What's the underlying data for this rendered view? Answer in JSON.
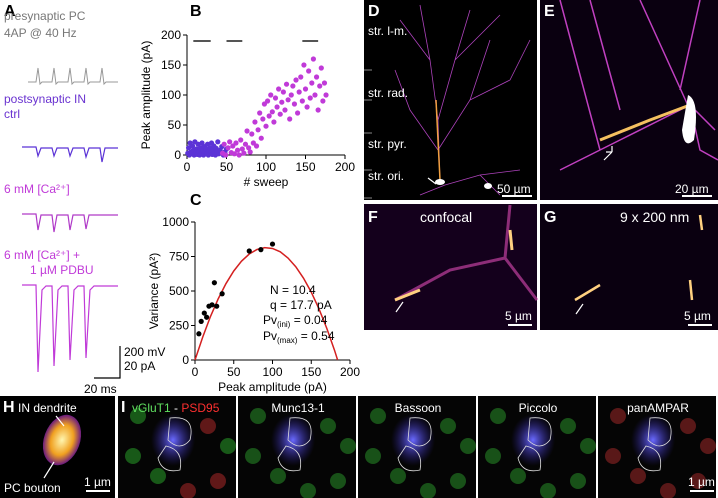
{
  "chart_data": [
    {
      "type": "scatter",
      "xlabel": "# sweep",
      "ylabel": "Peak amplitude (pA)",
      "xlim": [
        0,
        200
      ],
      "ylim": [
        0,
        200
      ],
      "xticks": [
        0,
        50,
        100,
        150,
        200
      ],
      "yticks": [
        0,
        50,
        100,
        150,
        200
      ],
      "period_y": 190,
      "periods": [
        [
          8,
          30
        ],
        [
          50,
          70
        ],
        [
          146,
          166
        ]
      ],
      "period_color": "#555555",
      "series": [
        {
          "color": "#5b33d6",
          "x": [
            1,
            2,
            3,
            4,
            5,
            6,
            7,
            8,
            9,
            10,
            11,
            12,
            13,
            14,
            15,
            16,
            17,
            18,
            19,
            20,
            21,
            22,
            23,
            24,
            25,
            26,
            27,
            28,
            29,
            30,
            31,
            32,
            33,
            34,
            35,
            36,
            37,
            38,
            39,
            40,
            42,
            44,
            46,
            48,
            50
          ],
          "values": [
            3,
            12,
            0,
            20,
            5,
            2,
            15,
            8,
            0,
            22,
            4,
            10,
            1,
            18,
            6,
            0,
            12,
            3,
            20,
            8,
            0,
            14,
            5,
            10,
            2,
            18,
            0,
            7,
            12,
            3,
            20,
            1,
            9,
            15,
            4,
            0,
            11,
            6,
            22,
            2,
            8,
            14,
            0,
            5,
            10
          ]
        },
        {
          "color": "#c03ad8",
          "x": [
            45,
            47,
            49,
            52,
            54,
            56,
            58,
            60,
            62,
            64,
            66,
            68,
            70,
            72,
            74,
            76,
            78,
            80,
            82,
            84,
            86,
            88,
            90,
            92,
            94,
            96,
            98,
            100,
            102,
            104,
            106,
            108,
            110,
            112,
            114,
            116,
            118,
            120,
            122,
            124,
            126,
            128,
            130,
            132,
            134,
            136,
            138,
            140,
            142,
            144,
            146,
            148,
            150,
            152,
            154,
            156,
            158,
            160,
            162,
            164,
            166,
            168,
            170,
            172,
            174,
            176
          ],
          "values": [
            3,
            18,
            0,
            12,
            22,
            4,
            15,
            2,
            20,
            8,
            0,
            25,
            10,
            3,
            18,
            40,
            12,
            5,
            35,
            20,
            55,
            15,
            42,
            70,
            28,
            60,
            85,
            48,
            90,
            65,
            100,
            72,
            55,
            95,
            80,
            110,
            68,
            88,
            105,
            75,
            118,
            92,
            60,
            100,
            115,
            85,
            125,
            70,
            105,
            130,
            90,
            150,
            110,
            80,
            140,
            95,
            120,
            160,
            100,
            130,
            75,
            115,
            145,
            90,
            120,
            100
          ]
        }
      ]
    },
    {
      "type": "scatter",
      "xlabel": "Peak amplitude (pA)",
      "ylabel": "Variance (pA²)",
      "xlim": [
        0,
        200
      ],
      "ylim": [
        0,
        1000
      ],
      "xticks": [
        0,
        50,
        100,
        150,
        200
      ],
      "yticks": [
        0,
        250,
        500,
        750,
        1000
      ],
      "series": [
        {
          "kind": "line",
          "color": "#d42020",
          "x": [
            0,
            10,
            20,
            30,
            40,
            50,
            60,
            70,
            80,
            90,
            100,
            110,
            120,
            130,
            140,
            150,
            160,
            170,
            180,
            184
          ],
          "values": [
            0,
            167,
            316,
            444,
            554,
            645,
            716,
            768,
            801,
            814,
            808,
            784,
            739,
            676,
            593,
            492,
            370,
            230,
            71,
            0
          ]
        },
        {
          "color": "#000000",
          "x": [
            5,
            8,
            12,
            15,
            18,
            22,
            25,
            28,
            35,
            70,
            85,
            100
          ],
          "values": [
            190,
            280,
            340,
            310,
            390,
            400,
            560,
            390,
            480,
            790,
            800,
            840
          ]
        }
      ],
      "annotations": [
        "N = 10.4",
        "q = 17.7 pA"
      ],
      "pv": [
        {
          "main": "Pv",
          "sub": "(ini)",
          "rest": " = 0.04"
        },
        {
          "main": "Pv",
          "sub": "(max)",
          "rest": " = 0.54"
        }
      ]
    }
  ],
  "panels": {
    "letters": [
      "A",
      "B",
      "C",
      "D",
      "E",
      "F",
      "G",
      "H",
      "I"
    ],
    "A": {
      "pre": [
        "presynaptic PC",
        "4AP @ 40 Hz"
      ],
      "post": "postsynaptic IN",
      "ctrl": "ctrl",
      "ca": "6 mM [Ca²⁺]",
      "ca2": "6 mM [Ca²⁺] +",
      "pdbu": "1 µM PDBU",
      "scale_v": "200 mV",
      "scale_i": "20 pA",
      "scale_t": "20 ms"
    },
    "D": {
      "layers": [
        "str. l-m.",
        "str. rad.",
        "str. pyr.",
        "str. ori."
      ],
      "scale": "50 µm"
    },
    "E": {
      "scale": "20 µm"
    },
    "F": {
      "title": "confocal",
      "scale": "5 µm"
    },
    "G": {
      "title": "9 x 200 nm",
      "scale": "5 µm"
    },
    "H": {
      "dendrite": "IN dendrite",
      "bouton": "PC bouton",
      "scale": "1 µm"
    },
    "I": {
      "channels": [
        [
          "vGluT1",
          "-",
          "PSD95"
        ],
        [
          "Munc13-1"
        ],
        [
          "Bassoon"
        ],
        [
          "Piccolo"
        ],
        [
          "panAMPAR"
        ]
      ],
      "scale": "1 µm"
    }
  }
}
